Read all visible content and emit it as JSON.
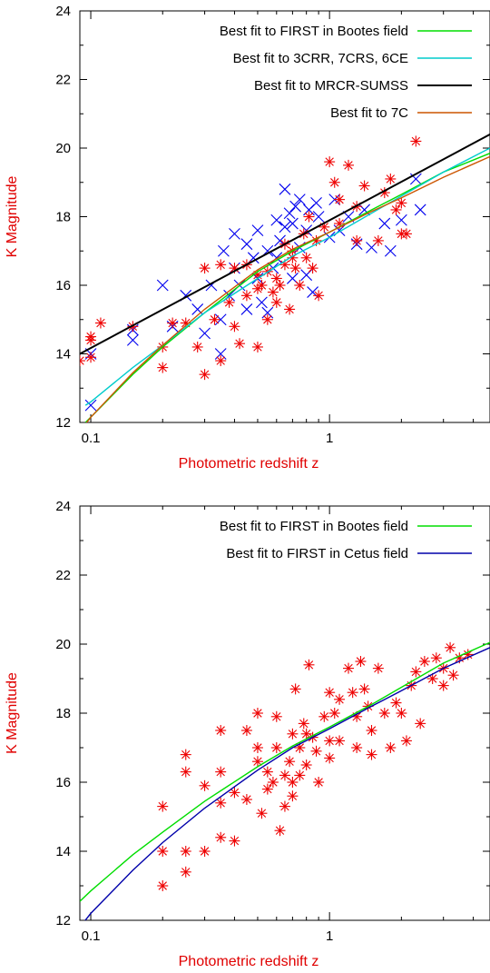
{
  "chart_data": [
    {
      "type": "scatter",
      "title": "",
      "xlabel": "Photometric redshift  z",
      "ylabel": "K Magnitude",
      "xscale": "log",
      "xlim": [
        0.09,
        4.7
      ],
      "ylim": [
        12,
        24
      ],
      "xticks": [
        {
          "value": 0.1,
          "label": "0.1"
        },
        {
          "value": 1,
          "label": "1"
        }
      ],
      "yticks": [
        12,
        14,
        16,
        18,
        20,
        22,
        24
      ],
      "legend_position": "top-right",
      "lines": [
        {
          "name": "Best fit to FIRST in Bootes field",
          "color": "#00dd00",
          "points": [
            [
              0.095,
              12.0
            ],
            [
              0.1,
              12.15
            ],
            [
              0.15,
              13.4
            ],
            [
              0.2,
              14.2
            ],
            [
              0.3,
              15.2
            ],
            [
              0.5,
              16.4
            ],
            [
              0.7,
              17.0
            ],
            [
              1.0,
              17.55
            ],
            [
              1.5,
              18.2
            ],
            [
              2.0,
              18.65
            ],
            [
              3.0,
              19.3
            ],
            [
              4.7,
              19.85
            ]
          ]
        },
        {
          "name": "Best fit to 3CRR, 7CRS, 6CE",
          "color": "#00cccc",
          "points": [
            [
              0.095,
              12.5
            ],
            [
              0.1,
              12.6
            ],
            [
              0.15,
              13.6
            ],
            [
              0.2,
              14.25
            ],
            [
              0.3,
              15.2
            ],
            [
              0.5,
              16.2
            ],
            [
              0.7,
              16.85
            ],
            [
              1.0,
              17.4
            ],
            [
              1.5,
              18.1
            ],
            [
              2.0,
              18.6
            ],
            [
              3.0,
              19.3
            ],
            [
              4.7,
              20.0
            ]
          ]
        },
        {
          "name": "Best fit to MRCR-SUMSS",
          "color": "#000000",
          "points": [
            [
              0.09,
              14.0
            ],
            [
              4.7,
              20.4
            ]
          ]
        },
        {
          "name": "Best fit to 7C",
          "color": "#cc5500",
          "points": [
            [
              0.095,
              11.95
            ],
            [
              0.1,
              12.15
            ],
            [
              0.15,
              13.45
            ],
            [
              0.2,
              14.25
            ],
            [
              0.3,
              15.3
            ],
            [
              0.5,
              16.45
            ],
            [
              0.7,
              17.05
            ],
            [
              1.0,
              17.55
            ],
            [
              1.5,
              18.15
            ],
            [
              2.0,
              18.55
            ],
            [
              3.0,
              19.15
            ],
            [
              4.7,
              19.75
            ]
          ]
        }
      ],
      "points_red": [
        [
          0.09,
          13.8
        ],
        [
          0.1,
          14.4
        ],
        [
          0.1,
          13.9
        ],
        [
          0.1,
          14.5
        ],
        [
          0.11,
          14.9
        ],
        [
          0.15,
          14.8
        ],
        [
          0.2,
          13.6
        ],
        [
          0.2,
          14.2
        ],
        [
          0.22,
          14.9
        ],
        [
          0.25,
          14.9
        ],
        [
          0.28,
          14.2
        ],
        [
          0.3,
          13.4
        ],
        [
          0.3,
          16.5
        ],
        [
          0.33,
          15.0
        ],
        [
          0.35,
          13.8
        ],
        [
          0.35,
          16.6
        ],
        [
          0.38,
          15.5
        ],
        [
          0.4,
          14.8
        ],
        [
          0.4,
          16.5
        ],
        [
          0.42,
          14.3
        ],
        [
          0.45,
          16.6
        ],
        [
          0.45,
          15.7
        ],
        [
          0.5,
          14.2
        ],
        [
          0.5,
          15.9
        ],
        [
          0.5,
          16.3
        ],
        [
          0.52,
          16.0
        ],
        [
          0.55,
          15.0
        ],
        [
          0.55,
          16.4
        ],
        [
          0.58,
          15.8
        ],
        [
          0.6,
          16.2
        ],
        [
          0.6,
          15.5
        ],
        [
          0.62,
          16.0
        ],
        [
          0.65,
          16.6
        ],
        [
          0.65,
          17.2
        ],
        [
          0.68,
          15.3
        ],
        [
          0.7,
          16.8
        ],
        [
          0.7,
          17.0
        ],
        [
          0.72,
          16.5
        ],
        [
          0.75,
          16.0
        ],
        [
          0.78,
          17.5
        ],
        [
          0.8,
          16.8
        ],
        [
          0.82,
          18.0
        ],
        [
          0.85,
          16.5
        ],
        [
          0.88,
          17.3
        ],
        [
          0.9,
          15.7
        ],
        [
          0.95,
          17.7
        ],
        [
          1.0,
          19.6
        ],
        [
          1.05,
          19.0
        ],
        [
          1.1,
          18.5
        ],
        [
          1.1,
          17.8
        ],
        [
          1.2,
          19.5
        ],
        [
          1.3,
          18.3
        ],
        [
          1.3,
          17.3
        ],
        [
          1.4,
          18.9
        ],
        [
          1.6,
          17.3
        ],
        [
          1.7,
          18.7
        ],
        [
          1.8,
          19.1
        ],
        [
          1.9,
          18.2
        ],
        [
          2.0,
          18.4
        ],
        [
          2.0,
          17.5
        ],
        [
          2.1,
          17.5
        ],
        [
          2.3,
          20.2
        ]
      ],
      "points_blue": [
        [
          0.1,
          12.5
        ],
        [
          0.1,
          14.0
        ],
        [
          0.15,
          14.4
        ],
        [
          0.15,
          14.7
        ],
        [
          0.2,
          16.0
        ],
        [
          0.22,
          14.8
        ],
        [
          0.25,
          15.7
        ],
        [
          0.28,
          15.3
        ],
        [
          0.3,
          14.6
        ],
        [
          0.32,
          16.0
        ],
        [
          0.35,
          14.0
        ],
        [
          0.35,
          15.0
        ],
        [
          0.36,
          17.0
        ],
        [
          0.38,
          15.7
        ],
        [
          0.4,
          16.5
        ],
        [
          0.4,
          17.5
        ],
        [
          0.42,
          16.0
        ],
        [
          0.45,
          15.3
        ],
        [
          0.45,
          17.2
        ],
        [
          0.48,
          16.8
        ],
        [
          0.5,
          16.2
        ],
        [
          0.5,
          17.6
        ],
        [
          0.52,
          15.5
        ],
        [
          0.55,
          17.0
        ],
        [
          0.55,
          15.2
        ],
        [
          0.58,
          16.5
        ],
        [
          0.6,
          17.9
        ],
        [
          0.6,
          16.8
        ],
        [
          0.62,
          17.3
        ],
        [
          0.65,
          17.7
        ],
        [
          0.65,
          18.8
        ],
        [
          0.68,
          18.1
        ],
        [
          0.7,
          16.2
        ],
        [
          0.7,
          17.8
        ],
        [
          0.72,
          18.3
        ],
        [
          0.75,
          17.1
        ],
        [
          0.75,
          18.5
        ],
        [
          0.8,
          17.6
        ],
        [
          0.8,
          16.3
        ],
        [
          0.82,
          18.2
        ],
        [
          0.85,
          15.8
        ],
        [
          0.88,
          18.4
        ],
        [
          0.9,
          18.0
        ],
        [
          1.0,
          17.4
        ],
        [
          1.05,
          18.5
        ],
        [
          1.1,
          17.6
        ],
        [
          1.2,
          18.0
        ],
        [
          1.3,
          17.2
        ],
        [
          1.4,
          18.2
        ],
        [
          1.5,
          17.1
        ],
        [
          1.7,
          17.8
        ],
        [
          1.8,
          17.0
        ],
        [
          2.0,
          17.9
        ],
        [
          2.3,
          19.1
        ],
        [
          2.4,
          18.2
        ]
      ]
    },
    {
      "type": "scatter",
      "title": "",
      "xlabel": "Photometric redshift  z",
      "ylabel": "K Magnitude",
      "xscale": "log",
      "xlim": [
        0.09,
        4.7
      ],
      "ylim": [
        12,
        24
      ],
      "xticks": [
        {
          "value": 0.1,
          "label": "0.1"
        },
        {
          "value": 1,
          "label": "1"
        }
      ],
      "yticks": [
        12,
        14,
        16,
        18,
        20,
        22,
        24
      ],
      "legend_position": "top-right",
      "lines": [
        {
          "name": "Best fit to FIRST in Bootes field",
          "color": "#00dd00",
          "points": [
            [
              0.09,
              12.55
            ],
            [
              0.1,
              12.85
            ],
            [
              0.15,
              13.9
            ],
            [
              0.2,
              14.55
            ],
            [
              0.3,
              15.45
            ],
            [
              0.5,
              16.45
            ],
            [
              0.7,
              17.05
            ],
            [
              1.0,
              17.6
            ],
            [
              1.5,
              18.25
            ],
            [
              2.0,
              18.75
            ],
            [
              3.0,
              19.45
            ],
            [
              4.7,
              20.05
            ]
          ]
        },
        {
          "name": "Best fit to FIRST in Cetus field",
          "color": "#0000aa",
          "points": [
            [
              0.09,
              11.8
            ],
            [
              0.1,
              12.2
            ],
            [
              0.15,
              13.45
            ],
            [
              0.2,
              14.25
            ],
            [
              0.3,
              15.25
            ],
            [
              0.5,
              16.35
            ],
            [
              0.7,
              17.0
            ],
            [
              1.0,
              17.55
            ],
            [
              1.5,
              18.2
            ],
            [
              2.0,
              18.65
            ],
            [
              3.0,
              19.3
            ],
            [
              4.7,
              19.9
            ]
          ]
        }
      ],
      "points_red": [
        [
          0.2,
          15.3
        ],
        [
          0.2,
          14.0
        ],
        [
          0.2,
          13.0
        ],
        [
          0.25,
          16.8
        ],
        [
          0.25,
          16.3
        ],
        [
          0.25,
          14.0
        ],
        [
          0.25,
          13.4
        ],
        [
          0.3,
          15.9
        ],
        [
          0.3,
          14.0
        ],
        [
          0.35,
          17.5
        ],
        [
          0.35,
          16.3
        ],
        [
          0.35,
          15.4
        ],
        [
          0.35,
          14.4
        ],
        [
          0.4,
          15.7
        ],
        [
          0.4,
          14.3
        ],
        [
          0.45,
          17.5
        ],
        [
          0.45,
          15.5
        ],
        [
          0.5,
          18.0
        ],
        [
          0.5,
          17.0
        ],
        [
          0.5,
          16.6
        ],
        [
          0.52,
          15.1
        ],
        [
          0.55,
          16.3
        ],
        [
          0.55,
          15.8
        ],
        [
          0.58,
          16.0
        ],
        [
          0.6,
          17.9
        ],
        [
          0.6,
          17.0
        ],
        [
          0.62,
          14.6
        ],
        [
          0.65,
          15.3
        ],
        [
          0.65,
          16.2
        ],
        [
          0.68,
          16.6
        ],
        [
          0.7,
          17.4
        ],
        [
          0.7,
          16.0
        ],
        [
          0.7,
          15.6
        ],
        [
          0.72,
          18.7
        ],
        [
          0.75,
          17.0
        ],
        [
          0.75,
          16.2
        ],
        [
          0.78,
          17.7
        ],
        [
          0.8,
          17.4
        ],
        [
          0.8,
          16.5
        ],
        [
          0.82,
          19.4
        ],
        [
          0.85,
          17.3
        ],
        [
          0.88,
          16.9
        ],
        [
          0.9,
          16.0
        ],
        [
          0.95,
          17.9
        ],
        [
          1.0,
          18.6
        ],
        [
          1.0,
          17.2
        ],
        [
          1.0,
          16.7
        ],
        [
          1.05,
          18.0
        ],
        [
          1.1,
          18.4
        ],
        [
          1.1,
          17.2
        ],
        [
          1.2,
          19.3
        ],
        [
          1.25,
          18.6
        ],
        [
          1.3,
          17.9
        ],
        [
          1.3,
          17.0
        ],
        [
          1.35,
          19.5
        ],
        [
          1.4,
          18.7
        ],
        [
          1.45,
          18.2
        ],
        [
          1.5,
          17.5
        ],
        [
          1.5,
          16.8
        ],
        [
          1.6,
          19.3
        ],
        [
          1.7,
          18.0
        ],
        [
          1.8,
          17.0
        ],
        [
          1.9,
          18.3
        ],
        [
          2.0,
          18.0
        ],
        [
          2.1,
          17.2
        ],
        [
          2.2,
          18.8
        ],
        [
          2.3,
          19.2
        ],
        [
          2.4,
          17.7
        ],
        [
          2.5,
          19.5
        ],
        [
          2.7,
          19.0
        ],
        [
          2.8,
          19.6
        ],
        [
          3.0,
          19.3
        ],
        [
          3.0,
          18.8
        ],
        [
          3.2,
          19.9
        ],
        [
          3.3,
          19.1
        ],
        [
          3.5,
          19.6
        ],
        [
          3.8,
          19.7
        ]
      ]
    }
  ]
}
